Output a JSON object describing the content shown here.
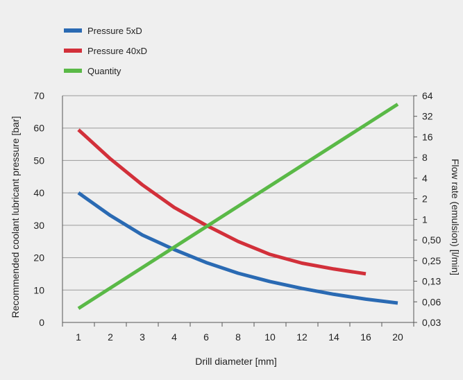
{
  "chart_data": {
    "type": "line",
    "x_categories": [
      "1",
      "2",
      "3",
      "4",
      "6",
      "8",
      "10",
      "12",
      "14",
      "16",
      "20"
    ],
    "xlabel": "Drill diameter [mm]",
    "ylabel_left": "Recommended coolant lubricant pressure [bar]",
    "ylabel_right": "Flow rate (emulsion) [l/min]",
    "ylim_left": [
      0,
      70
    ],
    "left_ticks": [
      "0",
      "10",
      "20",
      "30",
      "40",
      "50",
      "60",
      "70"
    ],
    "right_ticks": [
      "0,03",
      "0,06",
      "0,13",
      "0,25",
      "0,50",
      "1",
      "2",
      "4",
      "8",
      "16",
      "32",
      "64"
    ],
    "right_scale": "log2",
    "grid": true,
    "legend_position": "top-left",
    "series": [
      {
        "name": "Pressure 5xD",
        "color": "#2a6ab3",
        "axis": "left",
        "points": [
          [
            1,
            40
          ],
          [
            2,
            33
          ],
          [
            3,
            27
          ],
          [
            4,
            22.5
          ],
          [
            6,
            18.5
          ],
          [
            8,
            15.2
          ],
          [
            10,
            12.6
          ],
          [
            12,
            10.5
          ],
          [
            14,
            8.7
          ],
          [
            16,
            7.2
          ],
          [
            20,
            6
          ]
        ]
      },
      {
        "name": "Pressure 40xD",
        "color": "#d2303a",
        "axis": "left",
        "points": [
          [
            1,
            59.5
          ],
          [
            2,
            50.5
          ],
          [
            3,
            42.5
          ],
          [
            4,
            35.5
          ],
          [
            6,
            30
          ],
          [
            8,
            25
          ],
          [
            10,
            21
          ],
          [
            12,
            18.3
          ],
          [
            14,
            16.5
          ],
          [
            16,
            15
          ]
        ]
      },
      {
        "name": "Quantity",
        "color": "#5ab947",
        "axis": "right",
        "points": [
          [
            1,
            0.05
          ],
          [
            20,
            48
          ]
        ]
      }
    ]
  }
}
